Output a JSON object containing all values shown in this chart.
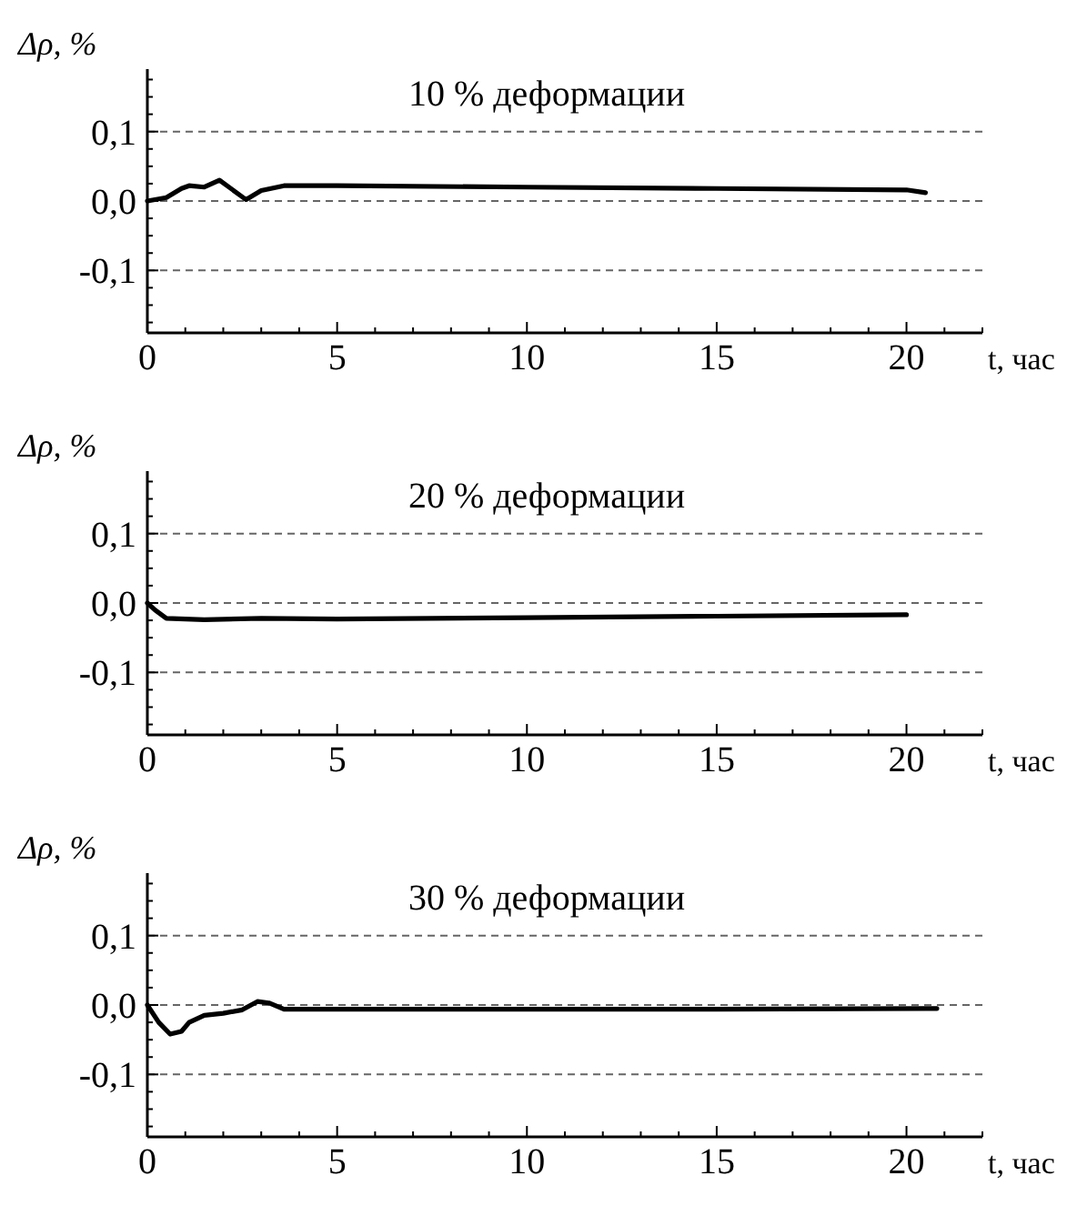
{
  "chart_data": [
    {
      "type": "line",
      "title": "10 % деформации",
      "xlabel": "t, час",
      "ylabel": "Δρ, %",
      "xlim": [
        0,
        22
      ],
      "ylim": [
        -0.19,
        0.19
      ],
      "xticks": [
        0,
        {
          "value": 1,
          "label": null
        },
        {
          "value": 2,
          "label": null
        },
        {
          "value": 3,
          "label": null
        },
        {
          "value": 4,
          "label": null
        },
        5,
        {
          "value": 6,
          "label": null
        },
        {
          "value": 7,
          "label": null
        },
        {
          "value": 8,
          "label": null
        },
        {
          "value": 9,
          "label": null
        },
        10,
        {
          "value": 11,
          "label": null
        },
        {
          "value": 12,
          "label": null
        },
        {
          "value": 13,
          "label": null
        },
        {
          "value": 14,
          "label": null
        },
        15,
        {
          "value": 16,
          "label": null
        },
        {
          "value": 17,
          "label": null
        },
        {
          "value": 18,
          "label": null
        },
        {
          "value": 19,
          "label": null
        },
        20,
        {
          "value": 21,
          "label": null
        },
        {
          "value": 22,
          "label": null
        }
      ],
      "yticks": [
        {
          "value": -0.175,
          "label": null
        },
        {
          "value": -0.15,
          "label": null
        },
        {
          "value": -0.125,
          "label": null
        },
        {
          "value": -0.1,
          "label": "-0,1"
        },
        {
          "value": -0.075,
          "label": null
        },
        {
          "value": -0.05,
          "label": null
        },
        {
          "value": -0.025,
          "label": null
        },
        {
          "value": 0,
          "label": "0,0"
        },
        {
          "value": 0.025,
          "label": null
        },
        {
          "value": 0.05,
          "label": null
        },
        {
          "value": 0.075,
          "label": null
        },
        {
          "value": 0.1,
          "label": "0,1"
        },
        {
          "value": 0.125,
          "label": null
        },
        {
          "value": 0.15,
          "label": null
        },
        {
          "value": 0.175,
          "label": null
        }
      ],
      "grid": "y",
      "marker": "none",
      "line_style": "solid",
      "series": [
        {
          "color": "#000000",
          "x": [
            0,
            0.5,
            0.9,
            1.1,
            1.5,
            1.9,
            2.2,
            2.6,
            3,
            3.6,
            5,
            10,
            15,
            20,
            20.5
          ],
          "values": [
            0,
            0.005,
            0.018,
            0.022,
            0.02,
            0.03,
            0.018,
            0.002,
            0.015,
            0.022,
            0.022,
            0.02,
            0.018,
            0.016,
            0.012
          ]
        }
      ]
    },
    {
      "type": "line",
      "title": "20 % деформации",
      "xlabel": "t, час",
      "ylabel": "Δρ, %",
      "xlim": [
        0,
        22
      ],
      "ylim": [
        -0.19,
        0.19
      ],
      "xticks": [
        0,
        {
          "value": 1,
          "label": null
        },
        {
          "value": 2,
          "label": null
        },
        {
          "value": 3,
          "label": null
        },
        {
          "value": 4,
          "label": null
        },
        5,
        {
          "value": 6,
          "label": null
        },
        {
          "value": 7,
          "label": null
        },
        {
          "value": 8,
          "label": null
        },
        {
          "value": 9,
          "label": null
        },
        10,
        {
          "value": 11,
          "label": null
        },
        {
          "value": 12,
          "label": null
        },
        {
          "value": 13,
          "label": null
        },
        {
          "value": 14,
          "label": null
        },
        15,
        {
          "value": 16,
          "label": null
        },
        {
          "value": 17,
          "label": null
        },
        {
          "value": 18,
          "label": null
        },
        {
          "value": 19,
          "label": null
        },
        20,
        {
          "value": 21,
          "label": null
        },
        {
          "value": 22,
          "label": null
        }
      ],
      "yticks": [
        {
          "value": -0.175,
          "label": null
        },
        {
          "value": -0.15,
          "label": null
        },
        {
          "value": -0.125,
          "label": null
        },
        {
          "value": -0.1,
          "label": "-0,1"
        },
        {
          "value": -0.075,
          "label": null
        },
        {
          "value": -0.05,
          "label": null
        },
        {
          "value": -0.025,
          "label": null
        },
        {
          "value": 0,
          "label": "0,0"
        },
        {
          "value": 0.025,
          "label": null
        },
        {
          "value": 0.05,
          "label": null
        },
        {
          "value": 0.075,
          "label": null
        },
        {
          "value": 0.1,
          "label": "0,1"
        },
        {
          "value": 0.125,
          "label": null
        },
        {
          "value": 0.15,
          "label": null
        },
        {
          "value": 0.175,
          "label": null
        }
      ],
      "grid": "y",
      "marker": "none",
      "line_style": "solid",
      "series": [
        {
          "color": "#000000",
          "x": [
            0,
            0.2,
            0.5,
            1.5,
            3,
            5,
            10,
            15,
            20
          ],
          "values": [
            0,
            -0.01,
            -0.022,
            -0.024,
            -0.022,
            -0.023,
            -0.021,
            -0.019,
            -0.017
          ]
        }
      ]
    },
    {
      "type": "line",
      "title": "30 % деформации",
      "xlabel": "t, час",
      "ylabel": "Δρ, %",
      "xlim": [
        0,
        22
      ],
      "ylim": [
        -0.19,
        0.19
      ],
      "xticks": [
        0,
        {
          "value": 1,
          "label": null
        },
        {
          "value": 2,
          "label": null
        },
        {
          "value": 3,
          "label": null
        },
        {
          "value": 4,
          "label": null
        },
        5,
        {
          "value": 6,
          "label": null
        },
        {
          "value": 7,
          "label": null
        },
        {
          "value": 8,
          "label": null
        },
        {
          "value": 9,
          "label": null
        },
        10,
        {
          "value": 11,
          "label": null
        },
        {
          "value": 12,
          "label": null
        },
        {
          "value": 13,
          "label": null
        },
        {
          "value": 14,
          "label": null
        },
        15,
        {
          "value": 16,
          "label": null
        },
        {
          "value": 17,
          "label": null
        },
        {
          "value": 18,
          "label": null
        },
        {
          "value": 19,
          "label": null
        },
        20,
        {
          "value": 21,
          "label": null
        },
        {
          "value": 22,
          "label": null
        }
      ],
      "yticks": [
        {
          "value": -0.175,
          "label": null
        },
        {
          "value": -0.15,
          "label": null
        },
        {
          "value": -0.125,
          "label": null
        },
        {
          "value": -0.1,
          "label": "-0,1"
        },
        {
          "value": -0.075,
          "label": null
        },
        {
          "value": -0.05,
          "label": null
        },
        {
          "value": -0.025,
          "label": null
        },
        {
          "value": 0,
          "label": "0,0"
        },
        {
          "value": 0.025,
          "label": null
        },
        {
          "value": 0.05,
          "label": null
        },
        {
          "value": 0.075,
          "label": null
        },
        {
          "value": 0.1,
          "label": "0,1"
        },
        {
          "value": 0.125,
          "label": null
        },
        {
          "value": 0.15,
          "label": null
        },
        {
          "value": 0.175,
          "label": null
        }
      ],
      "grid": "y",
      "marker": "none",
      "line_style": "solid",
      "series": [
        {
          "color": "#000000",
          "x": [
            0,
            0.3,
            0.6,
            0.9,
            1.1,
            1.5,
            2,
            2.5,
            2.9,
            3.2,
            3.6,
            5,
            10,
            15,
            20.8
          ],
          "values": [
            0,
            -0.025,
            -0.042,
            -0.038,
            -0.025,
            -0.015,
            -0.012,
            -0.007,
            0.005,
            0.003,
            -0.006,
            -0.006,
            -0.006,
            -0.006,
            -0.005
          ]
        }
      ]
    }
  ]
}
